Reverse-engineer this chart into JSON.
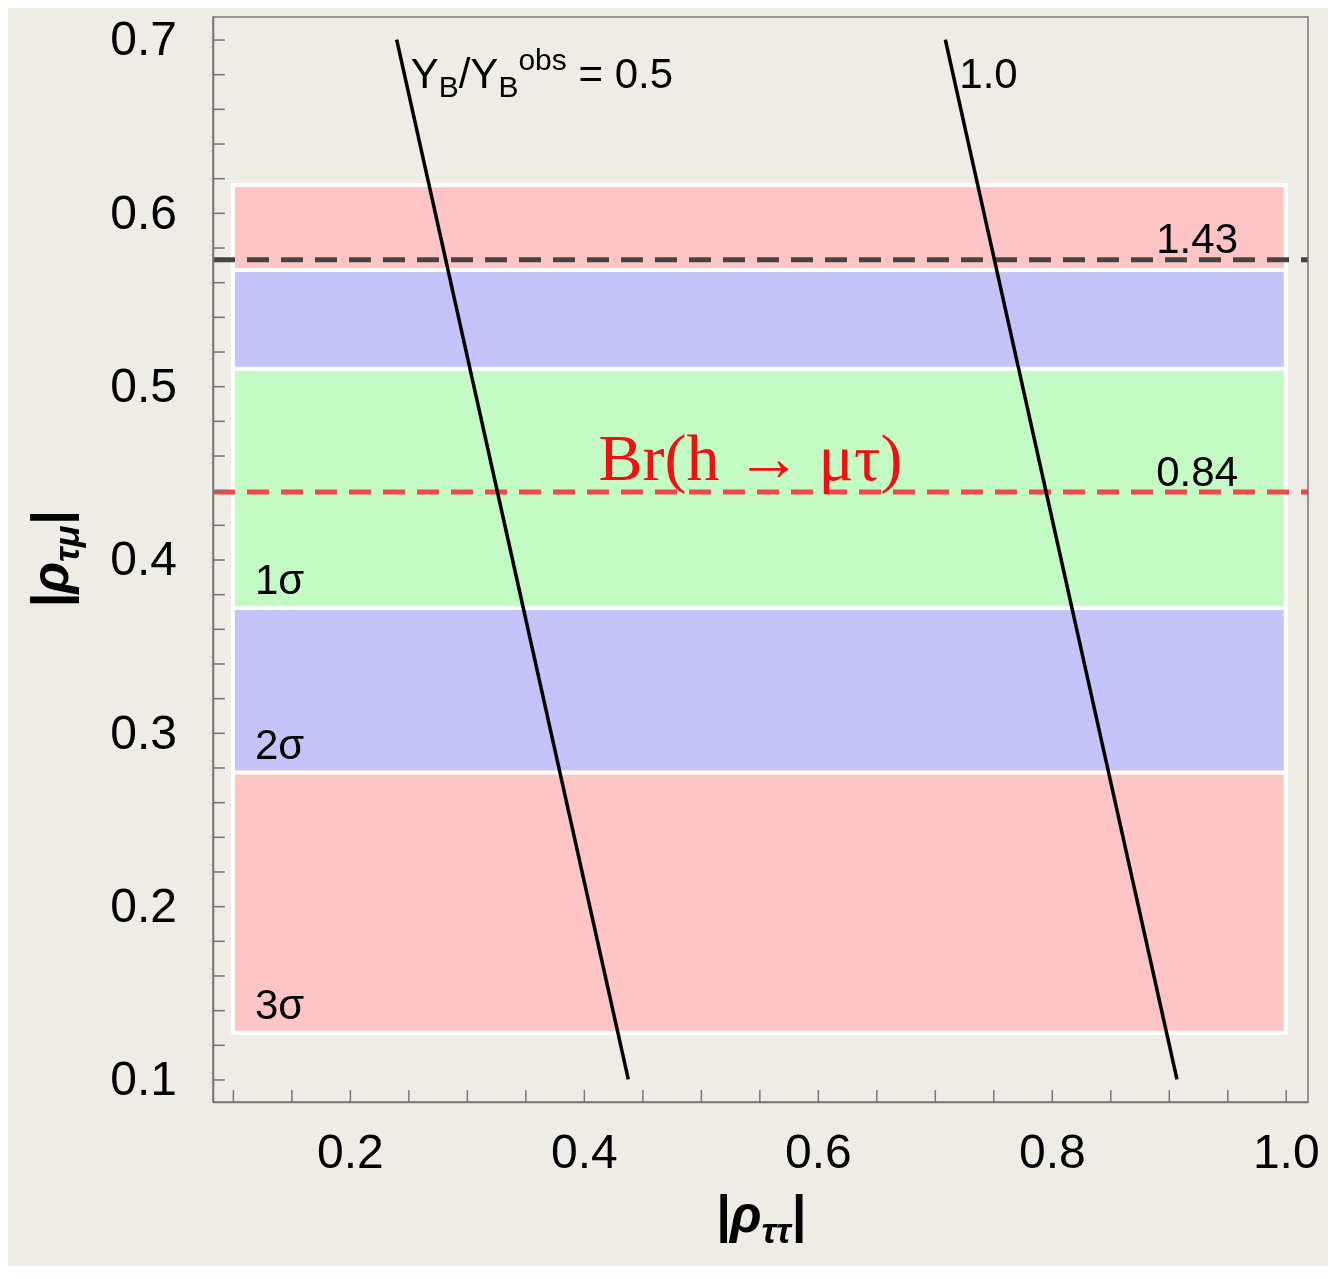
{
  "chart_data": {
    "type": "line",
    "xlabel": "|ρ$_{ττ}$|",
    "ylabel": "|ρ$_{τμ}$|",
    "xlim": [
      0.083,
      1.019
    ],
    "ylim": [
      0.087,
      0.713
    ],
    "xticks": [
      {
        "value": 0.1,
        "label": null
      },
      {
        "value": 0.15,
        "label": null
      },
      0.2,
      {
        "value": 0.25,
        "label": null
      },
      {
        "value": 0.3,
        "label": null
      },
      {
        "value": 0.35,
        "label": null
      },
      0.4,
      {
        "value": 0.45,
        "label": null
      },
      {
        "value": 0.5,
        "label": null
      },
      {
        "value": 0.55,
        "label": null
      },
      0.6,
      {
        "value": 0.65,
        "label": null
      },
      {
        "value": 0.7,
        "label": null
      },
      {
        "value": 0.75,
        "label": null
      },
      0.8,
      {
        "value": 0.85,
        "label": null
      },
      {
        "value": 0.9,
        "label": null
      },
      {
        "value": 0.95,
        "label": null
      },
      {
        "value": 1,
        "label": "1.0"
      }
    ],
    "yticks": [
      0.1,
      {
        "value": 0.12,
        "label": null
      },
      {
        "value": 0.14,
        "label": null
      },
      {
        "value": 0.16,
        "label": null
      },
      {
        "value": 0.18,
        "label": null
      },
      0.2,
      {
        "value": 0.22,
        "label": null
      },
      {
        "value": 0.24,
        "label": null
      },
      {
        "value": 0.26,
        "label": null
      },
      {
        "value": 0.28,
        "label": null
      },
      0.3,
      {
        "value": 0.32,
        "label": null
      },
      {
        "value": 0.34,
        "label": null
      },
      {
        "value": 0.36,
        "label": null
      },
      {
        "value": 0.38,
        "label": null
      },
      0.4,
      {
        "value": 0.42,
        "label": null
      },
      {
        "value": 0.44,
        "label": null
      },
      {
        "value": 0.46,
        "label": null
      },
      {
        "value": 0.48,
        "label": null
      },
      0.5,
      {
        "value": 0.52,
        "label": null
      },
      {
        "value": 0.54,
        "label": null
      },
      {
        "value": 0.56,
        "label": null
      },
      {
        "value": 0.58,
        "label": null
      },
      0.6,
      {
        "value": 0.62,
        "label": null
      },
      {
        "value": 0.64,
        "label": null
      },
      {
        "value": 0.66,
        "label": null
      },
      {
        "value": 0.68,
        "label": null
      },
      0.7
    ],
    "grid": false,
    "bands": [
      {
        "axis": "y",
        "from": 0.567,
        "to": 0.616,
        "color": "#ffc4c4"
      },
      {
        "axis": "y",
        "from": 0.51,
        "to": 0.567,
        "color": "#c4c4fa"
      },
      {
        "axis": "y",
        "from": 0.372,
        "to": 0.51,
        "label": "1σ",
        "color": "#c4fac4"
      },
      {
        "axis": "y",
        "from": 0.277,
        "to": 0.372,
        "label": "2σ",
        "color": "#c4c4fa"
      },
      {
        "axis": "y",
        "from": 0.127,
        "to": 0.277,
        "label": "3σ",
        "color": "#ffc4c4"
      }
    ],
    "ref_lines": [
      {
        "axis": "y",
        "value": 0.573,
        "color": "#444444",
        "line_style": "dashed"
      },
      {
        "axis": "y",
        "value": 0.439,
        "color": "#f04848",
        "line_style": "dashed"
      }
    ],
    "series": [
      {
        "name": "Y$_{B}$/Y$_{B}$$^{obs}$ = 0.5",
        "color": "#000000",
        "x": [
          0.24,
          0.438
        ],
        "values": [
          0.7,
          0.1
        ]
      },
      {
        "name": "1.0",
        "color": "#000000",
        "x": [
          0.709,
          0.907
        ],
        "values": [
          0.7,
          0.1
        ]
      }
    ],
    "annotations": [
      "Br(h → μτ)",
      "1.43",
      "0.84"
    ]
  }
}
